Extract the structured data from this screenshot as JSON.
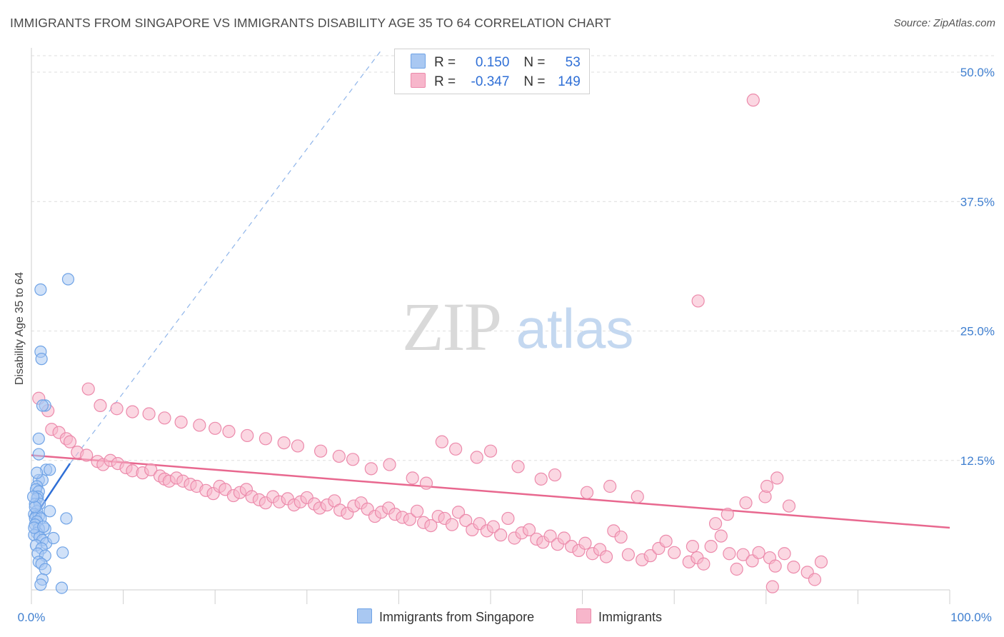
{
  "header": {
    "title": "IMMIGRANTS FROM SINGAPORE VS IMMIGRANTS DISABILITY AGE 35 TO 64 CORRELATION CHART",
    "source": "Source: ZipAtlas.com"
  },
  "watermark": {
    "zip": "ZIP",
    "atlas": "atlas"
  },
  "legend": {
    "rows": [
      {
        "r_label": "R =",
        "r_value": "0.150",
        "n_label": "N =",
        "n_value": "53",
        "color": "#a9c8f2"
      },
      {
        "r_label": "R =",
        "r_value": "-0.347",
        "n_label": "N =",
        "n_value": "149",
        "color": "#f7b6cb"
      }
    ]
  },
  "bottom_legend": {
    "items": [
      {
        "label": "Immigrants from Singapore",
        "color": "#a9c8f2"
      },
      {
        "label": "Immigrants",
        "color": "#f7b6cb"
      }
    ]
  },
  "chart_data": {
    "type": "scatter",
    "ylabel": "Disability Age 35 to 64",
    "xlabel": "",
    "xlim": [
      0,
      100
    ],
    "ylim": [
      0,
      52
    ],
    "x_tick_labels": [
      "0.0%",
      "100.0%"
    ],
    "y_ticks": [
      12.5,
      25.0,
      37.5,
      50.0
    ],
    "y_tick_labels": [
      "12.5%",
      "25.0%",
      "37.5%",
      "50.0%"
    ],
    "grid": true,
    "legend_position": "top-center",
    "series": [
      {
        "name": "Immigrants from Singapore",
        "color": "#6fa3e6",
        "fill": "#a9c8f2",
        "points": [
          [
            4.0,
            30.0
          ],
          [
            1.0,
            29.0
          ],
          [
            1.0,
            23.0
          ],
          [
            1.1,
            22.3
          ],
          [
            1.5,
            17.8
          ],
          [
            1.2,
            17.8
          ],
          [
            0.8,
            14.6
          ],
          [
            0.8,
            13.1
          ],
          [
            1.6,
            11.6
          ],
          [
            0.8,
            10.6
          ],
          [
            1.2,
            10.6
          ],
          [
            0.6,
            10.0
          ],
          [
            0.5,
            9.7
          ],
          [
            0.8,
            9.5
          ],
          [
            0.7,
            9.0
          ],
          [
            0.6,
            8.8
          ],
          [
            0.4,
            8.3
          ],
          [
            0.9,
            8.3
          ],
          [
            2.0,
            7.6
          ],
          [
            0.6,
            7.6
          ],
          [
            0.3,
            7.3
          ],
          [
            0.5,
            7.1
          ],
          [
            0.8,
            7.1
          ],
          [
            0.4,
            6.9
          ],
          [
            1.0,
            6.9
          ],
          [
            0.6,
            6.6
          ],
          [
            3.8,
            6.9
          ],
          [
            0.4,
            6.3
          ],
          [
            1.5,
            5.9
          ],
          [
            0.8,
            5.9
          ],
          [
            0.6,
            5.5
          ],
          [
            0.3,
            5.3
          ],
          [
            0.9,
            5.1
          ],
          [
            1.2,
            4.8
          ],
          [
            1.6,
            4.5
          ],
          [
            0.5,
            4.3
          ],
          [
            1.1,
            4.0
          ],
          [
            0.7,
            3.5
          ],
          [
            3.4,
            3.6
          ],
          [
            1.5,
            3.3
          ],
          [
            0.8,
            2.7
          ],
          [
            1.1,
            2.5
          ],
          [
            1.5,
            2.0
          ],
          [
            1.2,
            1.0
          ],
          [
            1.0,
            0.5
          ],
          [
            3.3,
            0.2
          ],
          [
            2.4,
            5.0
          ],
          [
            0.3,
            6.0
          ],
          [
            0.4,
            8.0
          ],
          [
            0.2,
            9.0
          ],
          [
            0.6,
            11.3
          ],
          [
            2.0,
            11.6
          ],
          [
            1.3,
            6.1
          ]
        ],
        "trend": {
          "x": [
            0.0,
            4.2
          ],
          "y": [
            6.6,
            12.2
          ],
          "dashed_extension_to": [
            38.0,
            52.0
          ]
        }
      },
      {
        "name": "Immigrants",
        "color": "#ec8aab",
        "fill": "#f7b6cb",
        "points": [
          [
            78.6,
            47.3
          ],
          [
            72.6,
            27.9
          ],
          [
            0.8,
            18.5
          ],
          [
            1.8,
            17.3
          ],
          [
            2.2,
            15.5
          ],
          [
            3.0,
            15.2
          ],
          [
            3.8,
            14.6
          ],
          [
            4.2,
            14.3
          ],
          [
            5.0,
            13.3
          ],
          [
            6.0,
            13.0
          ],
          [
            7.2,
            12.4
          ],
          [
            7.8,
            12.1
          ],
          [
            8.6,
            12.5
          ],
          [
            9.4,
            12.2
          ],
          [
            10.3,
            11.8
          ],
          [
            11.0,
            11.5
          ],
          [
            12.1,
            11.3
          ],
          [
            13.0,
            11.6
          ],
          [
            14.0,
            11.0
          ],
          [
            14.5,
            10.7
          ],
          [
            15.0,
            10.5
          ],
          [
            15.8,
            10.8
          ],
          [
            16.5,
            10.5
          ],
          [
            17.3,
            10.2
          ],
          [
            18.0,
            10.0
          ],
          [
            19.0,
            9.6
          ],
          [
            19.8,
            9.3
          ],
          [
            20.5,
            10.0
          ],
          [
            21.1,
            9.7
          ],
          [
            22.0,
            9.1
          ],
          [
            22.7,
            9.4
          ],
          [
            23.4,
            9.7
          ],
          [
            24.0,
            9.0
          ],
          [
            24.8,
            8.7
          ],
          [
            25.5,
            8.4
          ],
          [
            26.3,
            9.0
          ],
          [
            27.0,
            8.5
          ],
          [
            27.9,
            8.8
          ],
          [
            28.6,
            8.2
          ],
          [
            29.3,
            8.5
          ],
          [
            30.0,
            8.9
          ],
          [
            30.8,
            8.3
          ],
          [
            31.4,
            7.9
          ],
          [
            32.2,
            8.2
          ],
          [
            33.0,
            8.6
          ],
          [
            33.6,
            7.7
          ],
          [
            34.4,
            7.4
          ],
          [
            35.1,
            8.1
          ],
          [
            35.9,
            8.4
          ],
          [
            36.6,
            7.8
          ],
          [
            37.4,
            7.1
          ],
          [
            38.1,
            7.5
          ],
          [
            38.9,
            7.9
          ],
          [
            39.6,
            7.3
          ],
          [
            40.4,
            7.0
          ],
          [
            41.2,
            6.8
          ],
          [
            42.0,
            7.6
          ],
          [
            42.7,
            6.5
          ],
          [
            43.5,
            6.2
          ],
          [
            44.3,
            7.1
          ],
          [
            45.0,
            6.9
          ],
          [
            45.8,
            6.3
          ],
          [
            46.5,
            7.5
          ],
          [
            47.3,
            6.7
          ],
          [
            48.0,
            5.8
          ],
          [
            48.8,
            6.4
          ],
          [
            49.6,
            5.7
          ],
          [
            50.3,
            6.1
          ],
          [
            51.1,
            5.3
          ],
          [
            51.9,
            6.9
          ],
          [
            52.6,
            5.0
          ],
          [
            53.4,
            5.5
          ],
          [
            54.2,
            5.8
          ],
          [
            55.0,
            4.9
          ],
          [
            55.7,
            4.6
          ],
          [
            56.5,
            5.2
          ],
          [
            57.3,
            4.4
          ],
          [
            58.0,
            5.0
          ],
          [
            58.8,
            4.2
          ],
          [
            59.6,
            3.8
          ],
          [
            60.3,
            4.5
          ],
          [
            61.1,
            3.5
          ],
          [
            61.9,
            3.9
          ],
          [
            62.6,
            3.2
          ],
          [
            63.4,
            5.7
          ],
          [
            64.2,
            5.1
          ],
          [
            65.0,
            3.4
          ],
          [
            66.5,
            2.9
          ],
          [
            67.4,
            3.3
          ],
          [
            68.3,
            4.0
          ],
          [
            69.1,
            4.7
          ],
          [
            70.0,
            3.6
          ],
          [
            71.6,
            2.7
          ],
          [
            72.5,
            3.1
          ],
          [
            73.2,
            2.5
          ],
          [
            74.0,
            4.2
          ],
          [
            75.1,
            5.2
          ],
          [
            76.0,
            3.5
          ],
          [
            76.8,
            2.0
          ],
          [
            77.5,
            3.4
          ],
          [
            78.5,
            2.8
          ],
          [
            79.2,
            3.6
          ],
          [
            80.4,
            3.1
          ],
          [
            81.0,
            2.3
          ],
          [
            82.0,
            3.5
          ],
          [
            72.0,
            4.2
          ],
          [
            74.5,
            6.4
          ],
          [
            75.8,
            7.3
          ],
          [
            77.8,
            8.4
          ],
          [
            79.9,
            9.0
          ],
          [
            81.2,
            10.8
          ],
          [
            82.5,
            8.1
          ],
          [
            80.1,
            10.0
          ],
          [
            83.0,
            2.2
          ],
          [
            84.5,
            1.7
          ],
          [
            85.3,
            1.0
          ],
          [
            86.0,
            2.7
          ],
          [
            66.0,
            9.0
          ],
          [
            63.0,
            10.0
          ],
          [
            60.5,
            9.4
          ],
          [
            57.0,
            11.1
          ],
          [
            55.5,
            10.7
          ],
          [
            53.0,
            11.9
          ],
          [
            50.0,
            13.4
          ],
          [
            48.5,
            12.8
          ],
          [
            46.2,
            13.6
          ],
          [
            44.7,
            14.3
          ],
          [
            43.0,
            10.3
          ],
          [
            41.5,
            10.8
          ],
          [
            39.0,
            12.1
          ],
          [
            37.0,
            11.7
          ],
          [
            35.0,
            12.6
          ],
          [
            33.5,
            12.9
          ],
          [
            31.5,
            13.4
          ],
          [
            29.0,
            13.9
          ],
          [
            27.5,
            14.2
          ],
          [
            25.5,
            14.6
          ],
          [
            23.5,
            14.9
          ],
          [
            21.5,
            15.3
          ],
          [
            20.0,
            15.6
          ],
          [
            18.3,
            15.9
          ],
          [
            16.3,
            16.2
          ],
          [
            14.5,
            16.6
          ],
          [
            12.8,
            17.0
          ],
          [
            11.0,
            17.2
          ],
          [
            9.3,
            17.5
          ],
          [
            7.5,
            17.8
          ],
          [
            6.2,
            19.4
          ],
          [
            80.7,
            0.3
          ]
        ],
        "trend": {
          "x": [
            0.0,
            100.0
          ],
          "y": [
            13.0,
            6.0
          ]
        }
      }
    ]
  }
}
